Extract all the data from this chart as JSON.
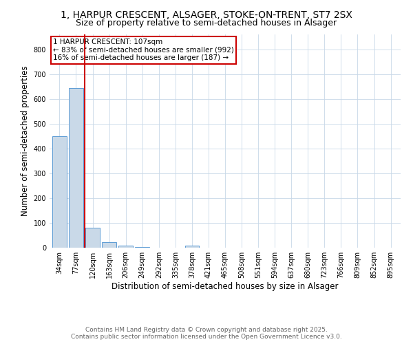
{
  "title_line1": "1, HARPUR CRESCENT, ALSAGER, STOKE-ON-TRENT, ST7 2SX",
  "title_line2": "Size of property relative to semi-detached houses in Alsager",
  "xlabel": "Distribution of semi-detached houses by size in Alsager",
  "ylabel": "Number of semi-detached properties",
  "categories": [
    "34sqm",
    "77sqm",
    "120sqm",
    "163sqm",
    "206sqm",
    "249sqm",
    "292sqm",
    "335sqm",
    "378sqm",
    "421sqm",
    "465sqm",
    "508sqm",
    "551sqm",
    "594sqm",
    "637sqm",
    "680sqm",
    "723sqm",
    "766sqm",
    "809sqm",
    "852sqm",
    "895sqm"
  ],
  "values": [
    450,
    645,
    80,
    22,
    8,
    4,
    0,
    0,
    8,
    0,
    0,
    0,
    0,
    0,
    0,
    0,
    0,
    0,
    0,
    0,
    0
  ],
  "bar_color": "#c9d9e8",
  "bar_edge_color": "#5b9bd5",
  "property_line_x": 1.5,
  "property_line_color": "#cc0000",
  "annotation_text": "1 HARPUR CRESCENT: 107sqm\n← 83% of semi-detached houses are smaller (992)\n16% of semi-detached houses are larger (187) →",
  "annotation_box_color": "#cc0000",
  "annotation_text_color": "#000000",
  "ylim": [
    0,
    860
  ],
  "yticks": [
    0,
    100,
    200,
    300,
    400,
    500,
    600,
    700,
    800
  ],
  "grid_color": "#c8d8e8",
  "background_color": "#ffffff",
  "footer_line1": "Contains HM Land Registry data © Crown copyright and database right 2025.",
  "footer_line2": "Contains public sector information licensed under the Open Government Licence v3.0.",
  "title_fontsize": 10,
  "subtitle_fontsize": 9,
  "label_fontsize": 8.5,
  "tick_fontsize": 7,
  "annotation_fontsize": 7.5,
  "footer_fontsize": 6.5
}
